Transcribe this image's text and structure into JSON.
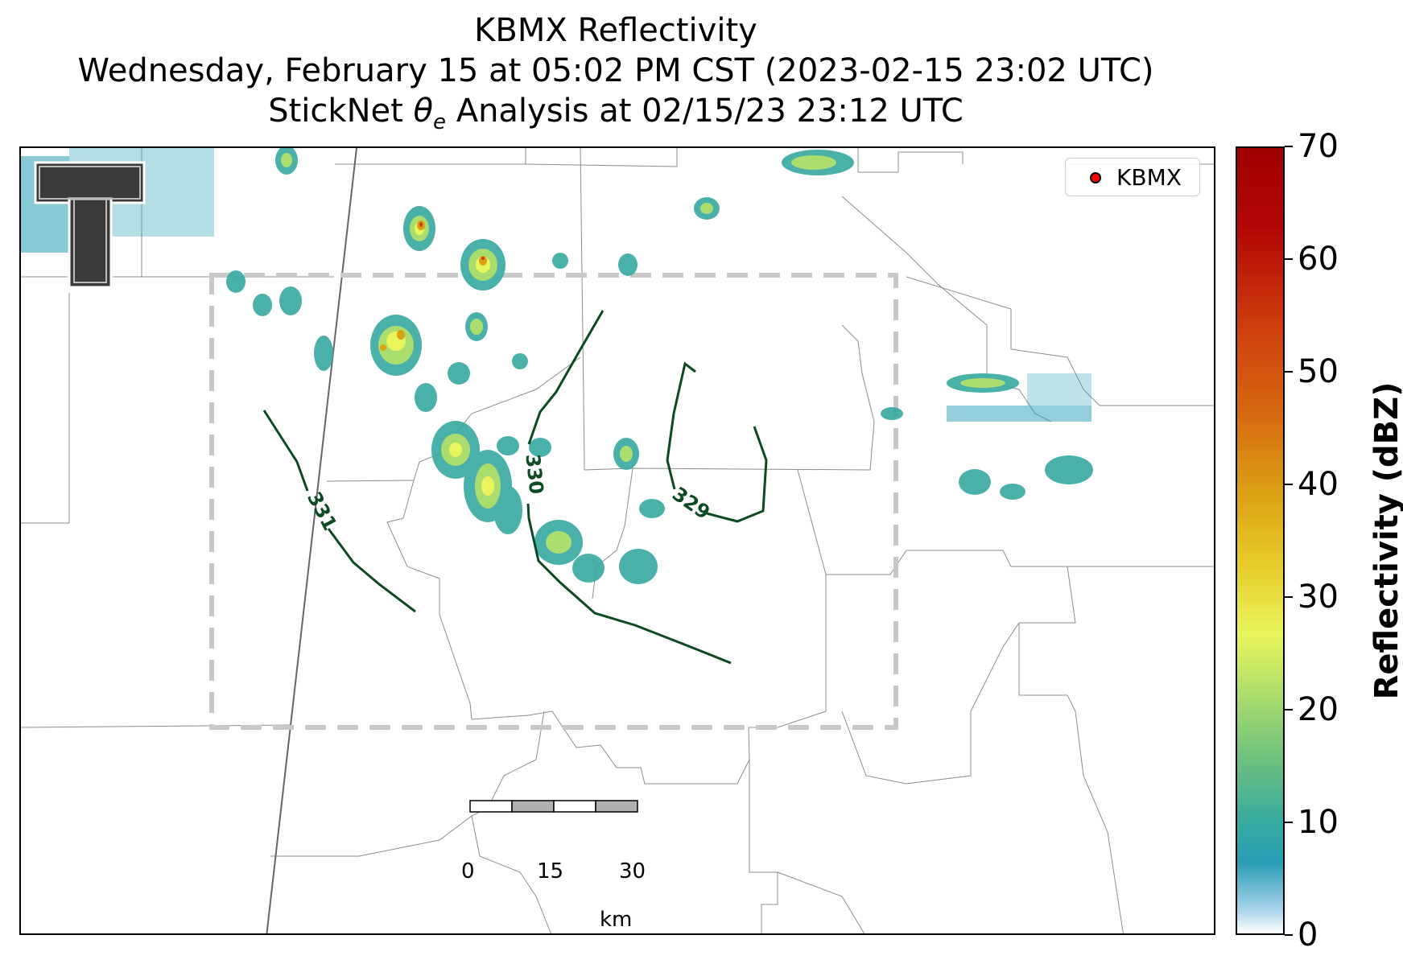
{
  "title": {
    "line1": "KBMX Reflectivity",
    "line2": "Wednesday, February 15 at 05:02 PM CST (2023-02-15 23:02 UTC)",
    "line3_prefix": "StickNet ",
    "line3_symbol": "θ",
    "line3_sub": "e",
    "line3_suffix": " Analysis at 02/15/23 23:12 UTC"
  },
  "legend": {
    "label": "KBMX",
    "marker_color": "#ff0000"
  },
  "colorbar": {
    "label": "Reflectivity (dBZ)",
    "ticks": [
      "0",
      "10",
      "20",
      "30",
      "40",
      "50",
      "60",
      "70"
    ],
    "range": [
      0,
      70
    ]
  },
  "contours": [
    {
      "label": "331",
      "color": "#0b4a22"
    },
    {
      "label": "330",
      "color": "#0b4a22"
    },
    {
      "label": "329",
      "color": "#0b4a22"
    }
  ],
  "scale_bar": {
    "ticks": [
      "0",
      "15",
      "30"
    ],
    "unit": "km"
  },
  "colors": {
    "contour": "#0b4a22",
    "analysis_box": "#c8c8c8",
    "county_lines": "#8c8c8c"
  },
  "logo": {
    "name": "Texas Tech double T logo"
  }
}
